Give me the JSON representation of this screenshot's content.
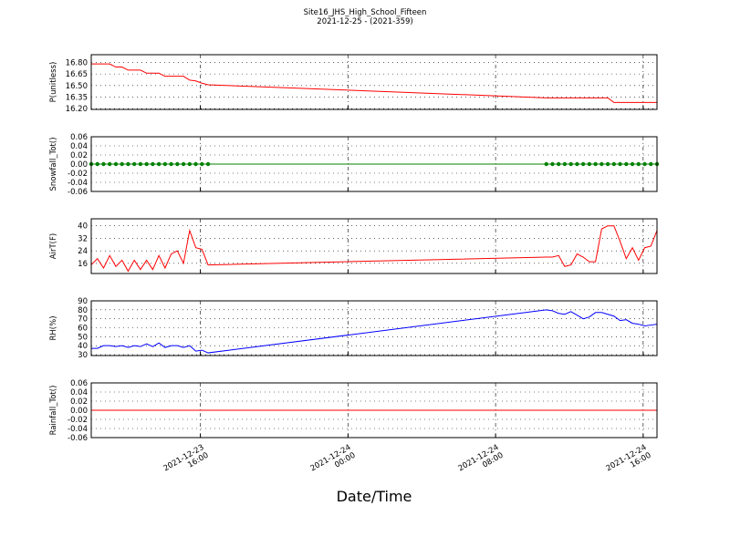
{
  "chart_data": [
    {
      "type": "line",
      "title": "Site16_JHS_High_School_Fifteen",
      "subtitle": "2021-12-25 - (2021-359)",
      "ylabel": "P(unitless)",
      "x": [
        "2021-12-23 10:05",
        "2021-12-23 10:25",
        "2021-12-23 10:45",
        "2021-12-23 11:05",
        "2021-12-23 11:25",
        "2021-12-23 11:45",
        "2021-12-23 12:05",
        "2021-12-23 12:25",
        "2021-12-23 12:45",
        "2021-12-23 13:05",
        "2021-12-23 13:25",
        "2021-12-23 13:45",
        "2021-12-23 14:05",
        "2021-12-23 14:25",
        "2021-12-23 14:45",
        "2021-12-23 15:05",
        "2021-12-23 15:25",
        "2021-12-23 15:45",
        "2021-12-23 16:05",
        "2021-12-23 16:25",
        "2021-12-24 10:45",
        "2021-12-24 11:05",
        "2021-12-24 11:25",
        "2021-12-24 11:45",
        "2021-12-24 12:05",
        "2021-12-24 12:25",
        "2021-12-24 12:45",
        "2021-12-24 13:05",
        "2021-12-24 13:25",
        "2021-12-24 13:45",
        "2021-12-24 14:05",
        "2021-12-24 14:25",
        "2021-12-24 14:45",
        "2021-12-24 15:05",
        "2021-12-24 15:25",
        "2021-12-24 15:45",
        "2021-12-24 16:05",
        "2021-12-24 16:25",
        "2021-12-24 16:45"
      ],
      "series": [
        {
          "color": "#ff0000",
          "values": [
            16.78,
            16.78,
            16.78,
            16.78,
            16.74,
            16.74,
            16.7,
            16.7,
            16.7,
            16.66,
            16.66,
            16.66,
            16.62,
            16.62,
            16.62,
            16.62,
            16.57,
            16.56,
            16.53,
            16.51,
            16.34,
            16.34,
            16.34,
            16.34,
            16.34,
            16.34,
            16.34,
            16.34,
            16.34,
            16.34,
            16.34,
            16.28,
            16.28,
            16.28,
            16.28,
            16.28,
            16.28,
            16.28,
            16.28
          ]
        }
      ],
      "xlim": [
        "2021-12-23 10:05",
        "2021-12-24 16:45"
      ],
      "xticks": [
        "2021-12-23 16:00",
        "2021-12-24 00:00",
        "2021-12-24 08:00",
        "2021-12-24 16:00"
      ],
      "ylim": [
        16.19,
        16.9
      ],
      "yticks": [
        {
          "value": 16.2,
          "label": "16.20"
        },
        16.35,
        {
          "value": 16.5,
          "label": "16.50"
        },
        16.65,
        {
          "value": 16.8,
          "label": "16.80"
        }
      ],
      "grid": true
    },
    {
      "type": "line",
      "ylabel": "Snowfall_Tot()",
      "x": [
        "2021-12-23 10:05",
        "2021-12-23 10:25",
        "2021-12-23 10:45",
        "2021-12-23 11:05",
        "2021-12-23 11:25",
        "2021-12-23 11:45",
        "2021-12-23 12:05",
        "2021-12-23 12:25",
        "2021-12-23 12:45",
        "2021-12-23 13:05",
        "2021-12-23 13:25",
        "2021-12-23 13:45",
        "2021-12-23 14:05",
        "2021-12-23 14:25",
        "2021-12-23 14:45",
        "2021-12-23 15:05",
        "2021-12-23 15:25",
        "2021-12-23 15:45",
        "2021-12-23 16:05",
        "2021-12-23 16:25",
        "2021-12-24 10:45",
        "2021-12-24 11:05",
        "2021-12-24 11:25",
        "2021-12-24 11:45",
        "2021-12-24 12:05",
        "2021-12-24 12:25",
        "2021-12-24 12:45",
        "2021-12-24 13:05",
        "2021-12-24 13:25",
        "2021-12-24 13:45",
        "2021-12-24 14:05",
        "2021-12-24 14:25",
        "2021-12-24 14:45",
        "2021-12-24 15:05",
        "2021-12-24 15:25",
        "2021-12-24 15:45",
        "2021-12-24 16:05",
        "2021-12-24 16:25",
        "2021-12-24 16:45"
      ],
      "series": [
        {
          "color": "#008000",
          "marker": true,
          "values": [
            0,
            0,
            0,
            0,
            0,
            0,
            0,
            0,
            0,
            0,
            0,
            0,
            0,
            0,
            0,
            0,
            0,
            0,
            0,
            0,
            0,
            0,
            0,
            0,
            0,
            0,
            0,
            0,
            0,
            0,
            0,
            0,
            0,
            0,
            0,
            0,
            0,
            0,
            0
          ]
        }
      ],
      "xlim": [
        "2021-12-23 10:05",
        "2021-12-24 16:45"
      ],
      "xticks": [
        "2021-12-23 16:00",
        "2021-12-24 00:00",
        "2021-12-24 08:00",
        "2021-12-24 16:00"
      ],
      "ylim": [
        -0.06,
        0.06
      ],
      "yticks": [
        -0.06,
        -0.04,
        -0.02,
        {
          "value": 0,
          "label": "0.00"
        },
        0.02,
        0.04,
        0.06
      ],
      "grid": true
    },
    {
      "type": "line",
      "ylabel": "AirT(F)",
      "x": [
        "2021-12-23 10:05",
        "2021-12-23 10:25",
        "2021-12-23 10:45",
        "2021-12-23 11:05",
        "2021-12-23 11:25",
        "2021-12-23 11:45",
        "2021-12-23 12:05",
        "2021-12-23 12:25",
        "2021-12-23 12:45",
        "2021-12-23 13:05",
        "2021-12-23 13:25",
        "2021-12-23 13:45",
        "2021-12-23 14:05",
        "2021-12-23 14:25",
        "2021-12-23 14:45",
        "2021-12-23 15:05",
        "2021-12-23 15:25",
        "2021-12-23 15:45",
        "2021-12-23 16:05",
        "2021-12-23 16:25",
        "2021-12-24 10:45",
        "2021-12-24 11:05",
        "2021-12-24 11:25",
        "2021-12-24 11:45",
        "2021-12-24 12:05",
        "2021-12-24 12:25",
        "2021-12-24 12:45",
        "2021-12-24 13:05",
        "2021-12-24 13:25",
        "2021-12-24 13:45",
        "2021-12-24 14:05",
        "2021-12-24 14:25",
        "2021-12-24 14:45",
        "2021-12-24 15:05",
        "2021-12-24 15:25",
        "2021-12-24 15:45",
        "2021-12-24 16:05",
        "2021-12-24 16:25",
        "2021-12-24 16:45"
      ],
      "series": [
        {
          "color": "#ff0000",
          "values": [
            15,
            19,
            13,
            21,
            14,
            18,
            11,
            18,
            12,
            18,
            12,
            21,
            13,
            22,
            24,
            16,
            37,
            26,
            25,
            15,
            20,
            20,
            21,
            14,
            15,
            22,
            20,
            17,
            17,
            38,
            40,
            40,
            30,
            19,
            26,
            18,
            26,
            27,
            37
          ]
        }
      ],
      "xlim": [
        "2021-12-23 10:05",
        "2021-12-24 16:45"
      ],
      "xticks": [
        "2021-12-23 16:00",
        "2021-12-24 00:00",
        "2021-12-24 08:00",
        "2021-12-24 16:00"
      ],
      "ylim": [
        9.5,
        44.5
      ],
      "yticks": [
        16,
        24,
        32,
        40
      ],
      "grid": true
    },
    {
      "type": "line",
      "ylabel": "RH(%)",
      "x": [
        "2021-12-23 10:05",
        "2021-12-23 10:25",
        "2021-12-23 10:45",
        "2021-12-23 11:05",
        "2021-12-23 11:25",
        "2021-12-23 11:45",
        "2021-12-23 12:05",
        "2021-12-23 12:25",
        "2021-12-23 12:45",
        "2021-12-23 13:05",
        "2021-12-23 13:25",
        "2021-12-23 13:45",
        "2021-12-23 14:05",
        "2021-12-23 14:25",
        "2021-12-23 14:45",
        "2021-12-23 15:05",
        "2021-12-23 15:25",
        "2021-12-23 15:45",
        "2021-12-23 16:05",
        "2021-12-23 16:25",
        "2021-12-24 10:45",
        "2021-12-24 11:05",
        "2021-12-24 11:25",
        "2021-12-24 11:45",
        "2021-12-24 12:05",
        "2021-12-24 12:25",
        "2021-12-24 12:45",
        "2021-12-24 13:05",
        "2021-12-24 13:25",
        "2021-12-24 13:45",
        "2021-12-24 14:05",
        "2021-12-24 14:25",
        "2021-12-24 14:45",
        "2021-12-24 15:05",
        "2021-12-24 15:25",
        "2021-12-24 15:45",
        "2021-12-24 16:05",
        "2021-12-24 16:25",
        "2021-12-24 16:45"
      ],
      "series": [
        {
          "color": "#0000ff",
          "values": [
            37,
            37,
            40,
            40,
            39,
            40,
            38,
            40,
            39,
            42,
            39,
            43,
            38,
            40,
            40,
            38,
            40,
            34,
            35,
            32,
            80,
            79,
            76,
            75,
            78,
            74,
            70,
            72,
            77,
            77,
            75,
            73,
            68,
            69,
            65,
            64,
            62,
            63,
            64
          ]
        }
      ],
      "xlim": [
        "2021-12-23 10:05",
        "2021-12-24 16:45"
      ],
      "xticks": [
        "2021-12-23 16:00",
        "2021-12-24 00:00",
        "2021-12-24 08:00",
        "2021-12-24 16:00"
      ],
      "ylim": [
        29,
        90
      ],
      "yticks": [
        30,
        40,
        50,
        60,
        70,
        80,
        90
      ],
      "grid": true
    },
    {
      "type": "line",
      "ylabel": "Rainfall_Tot()",
      "xlabel": "Date/Time",
      "x": [
        "2021-12-23 10:05",
        "2021-12-23 10:25",
        "2021-12-23 10:45",
        "2021-12-23 11:05",
        "2021-12-23 11:25",
        "2021-12-23 11:45",
        "2021-12-23 12:05",
        "2021-12-23 12:25",
        "2021-12-23 12:45",
        "2021-12-23 13:05",
        "2021-12-23 13:25",
        "2021-12-23 13:45",
        "2021-12-23 14:05",
        "2021-12-23 14:25",
        "2021-12-23 14:45",
        "2021-12-23 15:05",
        "2021-12-23 15:25",
        "2021-12-23 15:45",
        "2021-12-23 16:05",
        "2021-12-23 16:25",
        "2021-12-24 10:45",
        "2021-12-24 11:05",
        "2021-12-24 11:25",
        "2021-12-24 11:45",
        "2021-12-24 12:05",
        "2021-12-24 12:25",
        "2021-12-24 12:45",
        "2021-12-24 13:05",
        "2021-12-24 13:25",
        "2021-12-24 13:45",
        "2021-12-24 14:05",
        "2021-12-24 14:25",
        "2021-12-24 14:45",
        "2021-12-24 15:05",
        "2021-12-24 15:25",
        "2021-12-24 15:45",
        "2021-12-24 16:05",
        "2021-12-24 16:25",
        "2021-12-24 16:45"
      ],
      "series": [
        {
          "color": "#ff0000",
          "values": [
            0,
            0,
            0,
            0,
            0,
            0,
            0,
            0,
            0,
            0,
            0,
            0,
            0,
            0,
            0,
            0,
            0,
            0,
            0,
            0,
            0,
            0,
            0,
            0,
            0,
            0,
            0,
            0,
            0,
            0,
            0,
            0,
            0,
            0,
            0,
            0,
            0,
            0,
            0
          ]
        }
      ],
      "xlim": [
        "2021-12-23 10:05",
        "2021-12-24 16:45"
      ],
      "xticks": [
        {
          "value": "2021-12-23 16:00",
          "label": "2021-12-23\n16:00"
        },
        {
          "value": "2021-12-24 00:00",
          "label": "2021-12-24\n00:00"
        },
        {
          "value": "2021-12-24 08:00",
          "label": "2021-12-24\n08:00"
        },
        {
          "value": "2021-12-24 16:00",
          "label": "2021-12-24\n16:00"
        }
      ],
      "ylim": [
        -0.06,
        0.06
      ],
      "yticks": [
        -0.06,
        -0.04,
        -0.02,
        {
          "value": 0,
          "label": "0.00"
        },
        0.02,
        0.04,
        0.06
      ],
      "grid": true
    }
  ]
}
